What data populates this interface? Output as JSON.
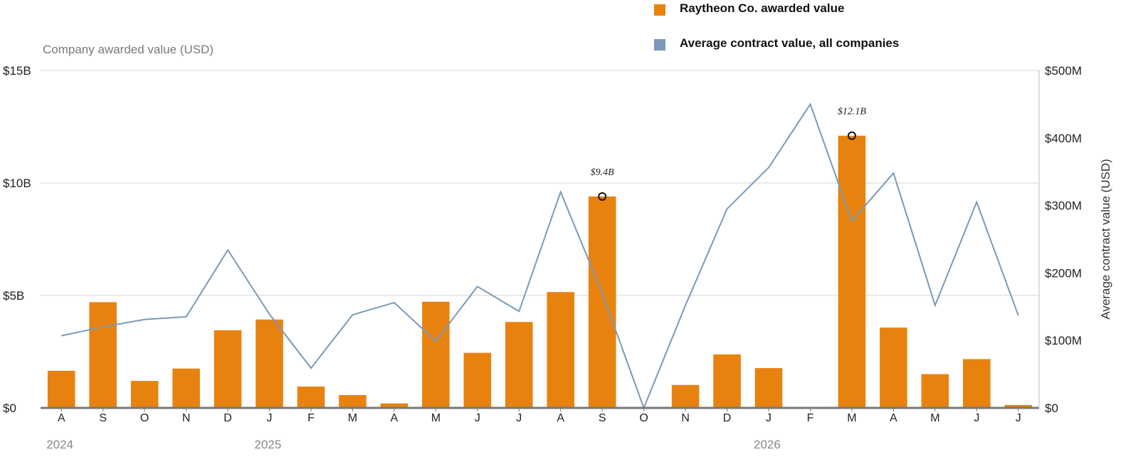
{
  "chart_data": {
    "type": "bar+line",
    "categories": [
      "A",
      "S",
      "O",
      "N",
      "D",
      "J",
      "F",
      "M",
      "A",
      "M",
      "J",
      "J",
      "A",
      "S",
      "O",
      "N",
      "D",
      "J",
      "F",
      "M",
      "A",
      "M",
      "J",
      "J"
    ],
    "years": [
      {
        "label": "2024",
        "index": 0
      },
      {
        "label": "2025",
        "index": 5
      },
      {
        "label": "2026",
        "index": 17
      }
    ],
    "series": [
      {
        "name": "Raytheon Co. awarded value",
        "type": "bar",
        "axis": "left",
        "color": "#E8820F",
        "values": [
          1.65,
          4.7,
          1.2,
          1.75,
          3.45,
          3.93,
          0.95,
          0.57,
          0.2,
          4.72,
          2.45,
          3.82,
          5.15,
          9.4,
          0,
          1.02,
          2.38,
          1.77,
          0,
          12.1,
          3.57,
          1.5,
          2.17,
          0.13
        ]
      },
      {
        "name": "Average contract value, all companies",
        "type": "line",
        "axis": "right",
        "color": "#7A9AB8",
        "values": [
          107,
          120,
          131,
          135,
          234,
          139,
          59,
          138,
          156,
          99,
          180,
          143,
          320,
          170,
          0,
          152,
          295,
          356,
          450,
          277,
          348,
          152,
          305,
          137
        ]
      }
    ],
    "annotations": [
      {
        "index": 13,
        "label": "$9.4B"
      },
      {
        "index": 19,
        "label": "$12.1B"
      }
    ],
    "y_left": {
      "label": "Company awarded value (USD)",
      "ylim": [
        0,
        15
      ],
      "ticks": [
        0,
        5,
        10,
        15
      ],
      "tick_labels": [
        "$0",
        "$5B",
        "$10B",
        "$15B"
      ]
    },
    "y_right": {
      "label": "Average contract value (USD)",
      "ylim": [
        0,
        500
      ],
      "ticks": [
        0,
        100,
        200,
        300,
        400,
        500
      ],
      "tick_labels": [
        "$0",
        "$100M",
        "$200M",
        "$300M",
        "$400M",
        "$500M"
      ]
    },
    "grid": true,
    "legend": "top-right"
  }
}
